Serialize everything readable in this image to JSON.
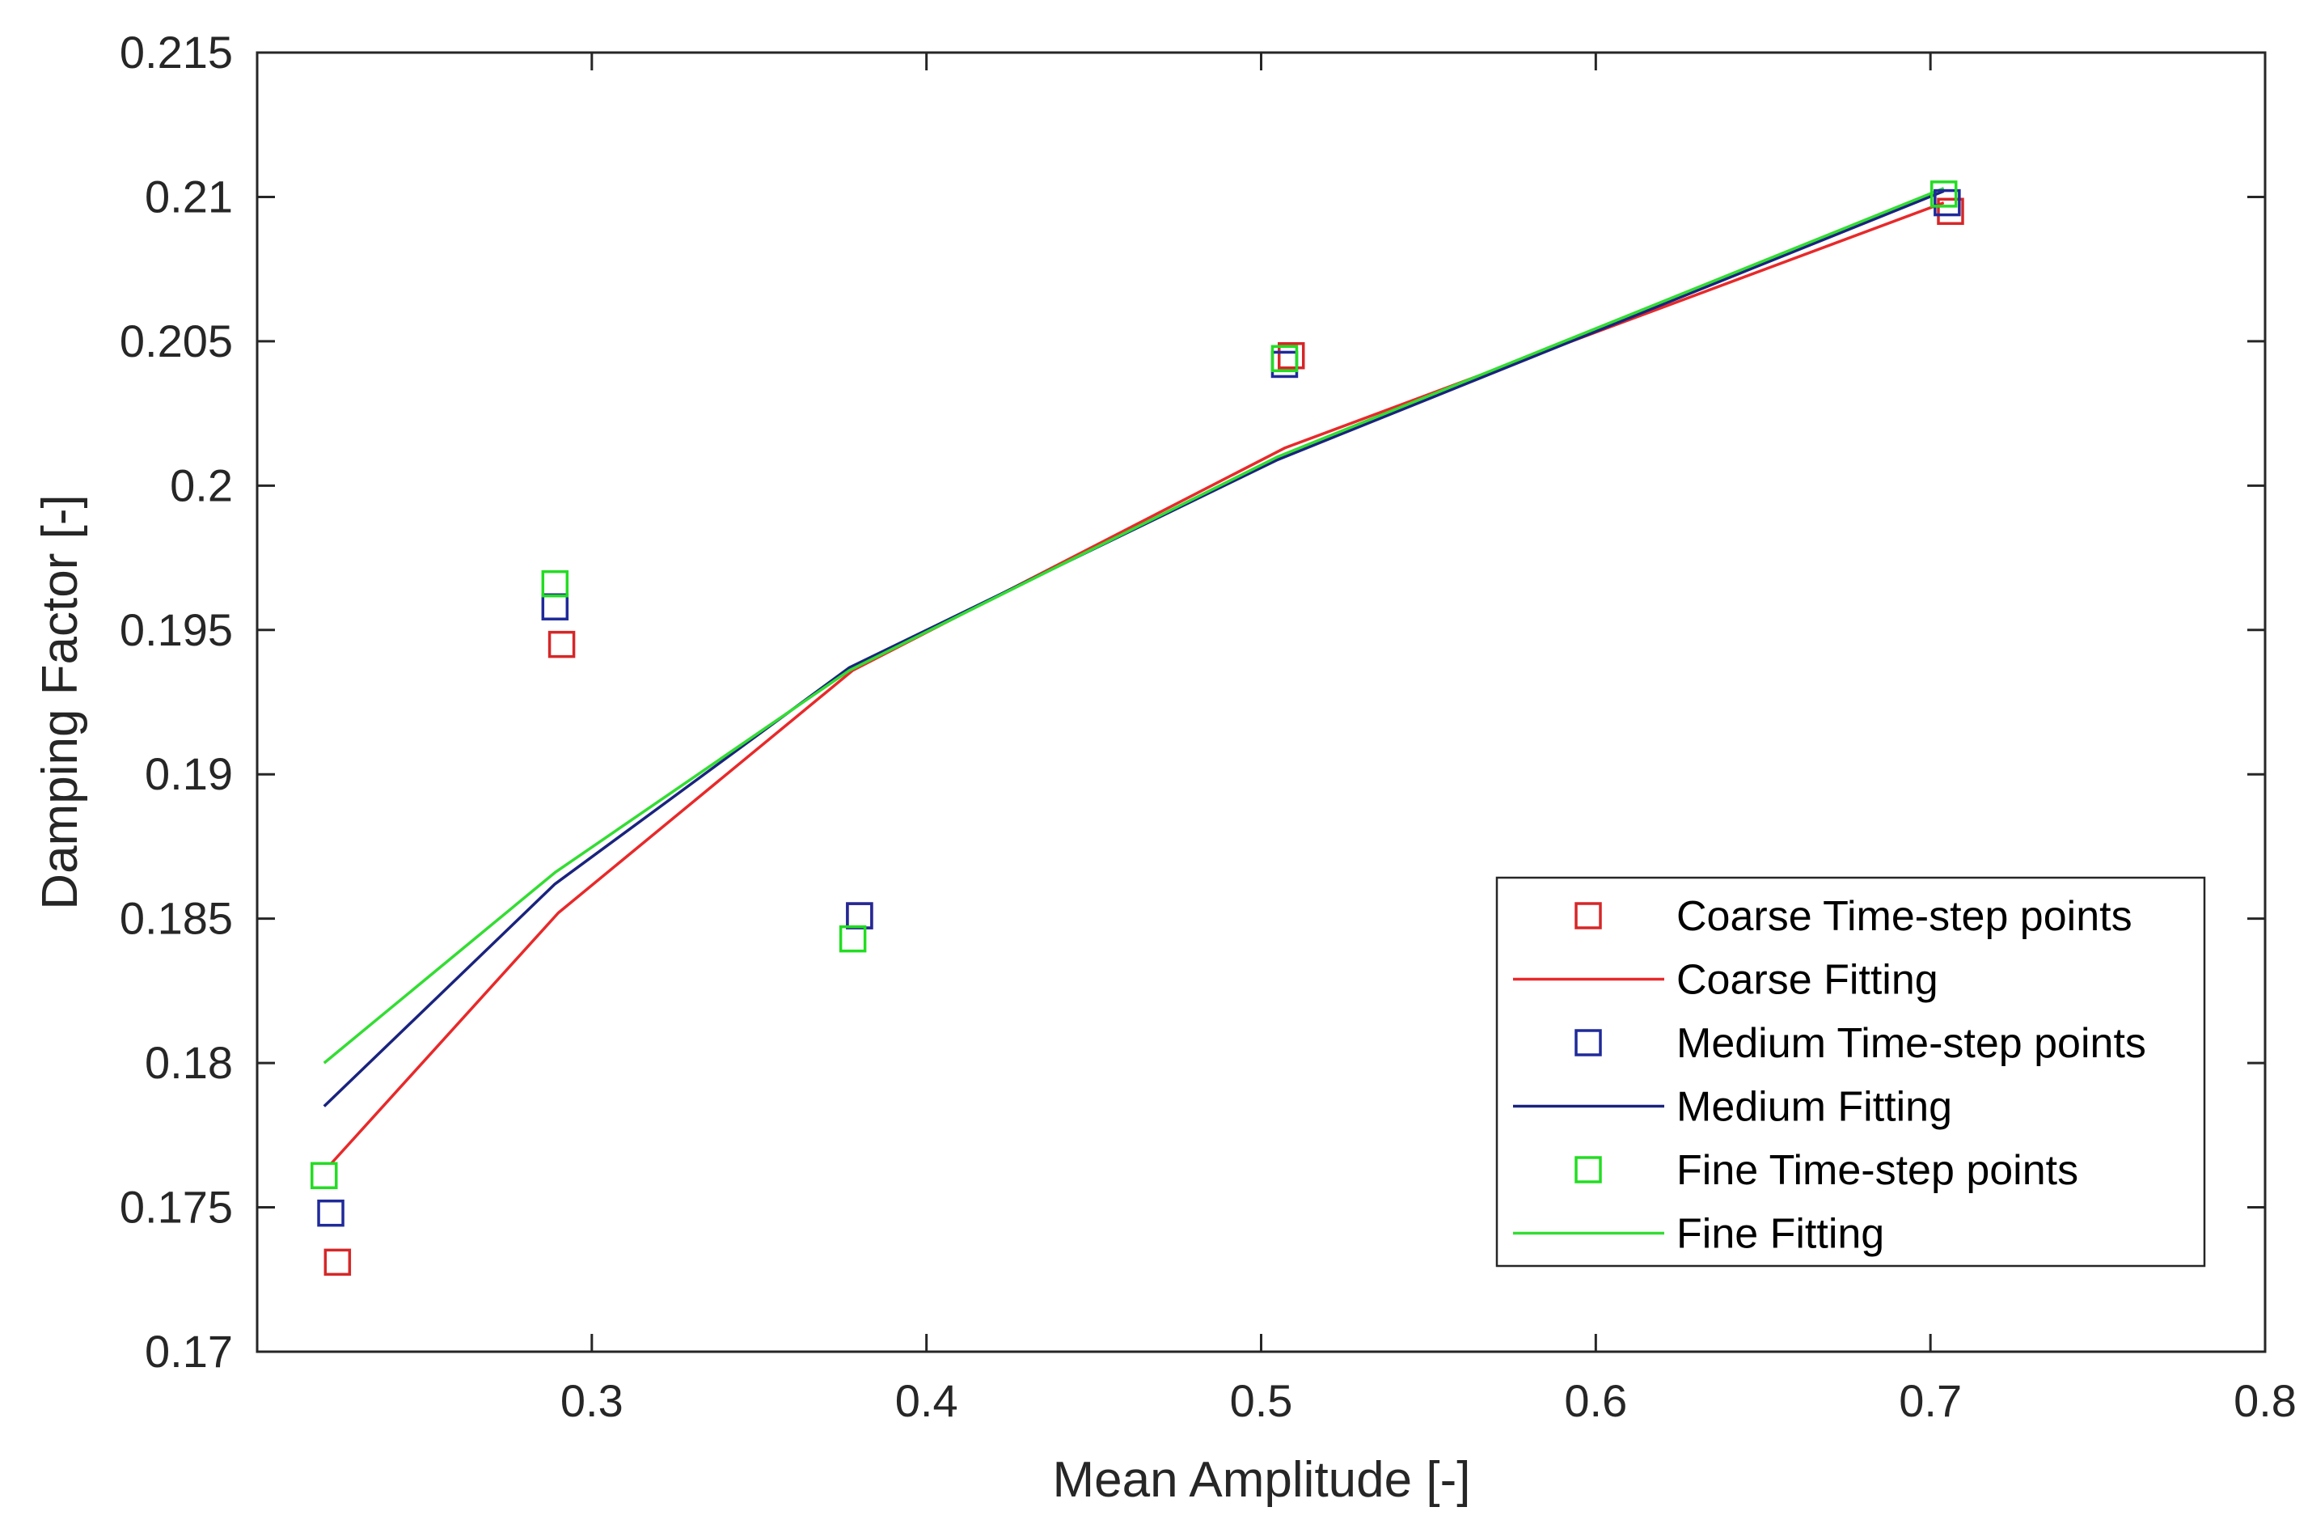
{
  "chart_data": {
    "type": "scatter",
    "title": "",
    "xlabel": "Mean Amplitude [-]",
    "ylabel": "Damping Factor [-]",
    "xlim": [
      0.2,
      0.8
    ],
    "ylim": [
      0.17,
      0.215
    ],
    "xticks": [
      0.3,
      0.4,
      0.5,
      0.6,
      0.7,
      0.8
    ],
    "xtick_labels": [
      "0.3",
      "0.4",
      "0.5",
      "0.6",
      "0.7",
      "0.8"
    ],
    "yticks": [
      0.17,
      0.175,
      0.18,
      0.185,
      0.19,
      0.195,
      0.2,
      0.205,
      0.21,
      0.215
    ],
    "ytick_labels": [
      "0.17",
      "0.175",
      "0.18",
      "0.185",
      "0.19",
      "0.195",
      "0.2",
      "0.205",
      "0.21",
      "0.215"
    ],
    "grid": false,
    "legend_position": "bottom-right",
    "series": [
      {
        "name": "Coarse Time-step points",
        "kind": "points",
        "marker": "square",
        "color": "#d62728",
        "x": [
          0.224,
          0.291,
          0.38,
          0.509,
          0.706
        ],
        "y": [
          0.1731,
          0.1945,
          0.1851,
          0.2045,
          0.2095
        ]
      },
      {
        "name": "Coarse Fitting",
        "kind": "line",
        "color": "#e8292a",
        "x": [
          0.222,
          0.29,
          0.378,
          0.507,
          0.704
        ],
        "y": [
          0.1765,
          0.1852,
          0.1936,
          0.2013,
          0.2098
        ]
      },
      {
        "name": "Medium Time-step points",
        "kind": "points",
        "marker": "square",
        "color": "#1f2a9a",
        "x": [
          0.222,
          0.289,
          0.38,
          0.507,
          0.705
        ],
        "y": [
          0.1748,
          0.1958,
          0.1851,
          0.2042,
          0.2098
        ]
      },
      {
        "name": "Medium Fitting",
        "kind": "line",
        "color": "#1a237e",
        "x": [
          0.22,
          0.289,
          0.377,
          0.505,
          0.704
        ],
        "y": [
          0.1785,
          0.1862,
          0.1937,
          0.2009,
          0.2102
        ]
      },
      {
        "name": "Fine Time-step points",
        "kind": "points",
        "marker": "square",
        "color": "#22dd22",
        "x": [
          0.22,
          0.289,
          0.378,
          0.507,
          0.704
        ],
        "y": [
          0.1761,
          0.1966,
          0.1843,
          0.2044,
          0.2101
        ]
      },
      {
        "name": "Fine Fitting",
        "kind": "line",
        "color": "#33dd33",
        "x": [
          0.22,
          0.289,
          0.377,
          0.505,
          0.704
        ],
        "y": [
          0.18,
          0.1866,
          0.1936,
          0.201,
          0.2103
        ]
      }
    ]
  }
}
